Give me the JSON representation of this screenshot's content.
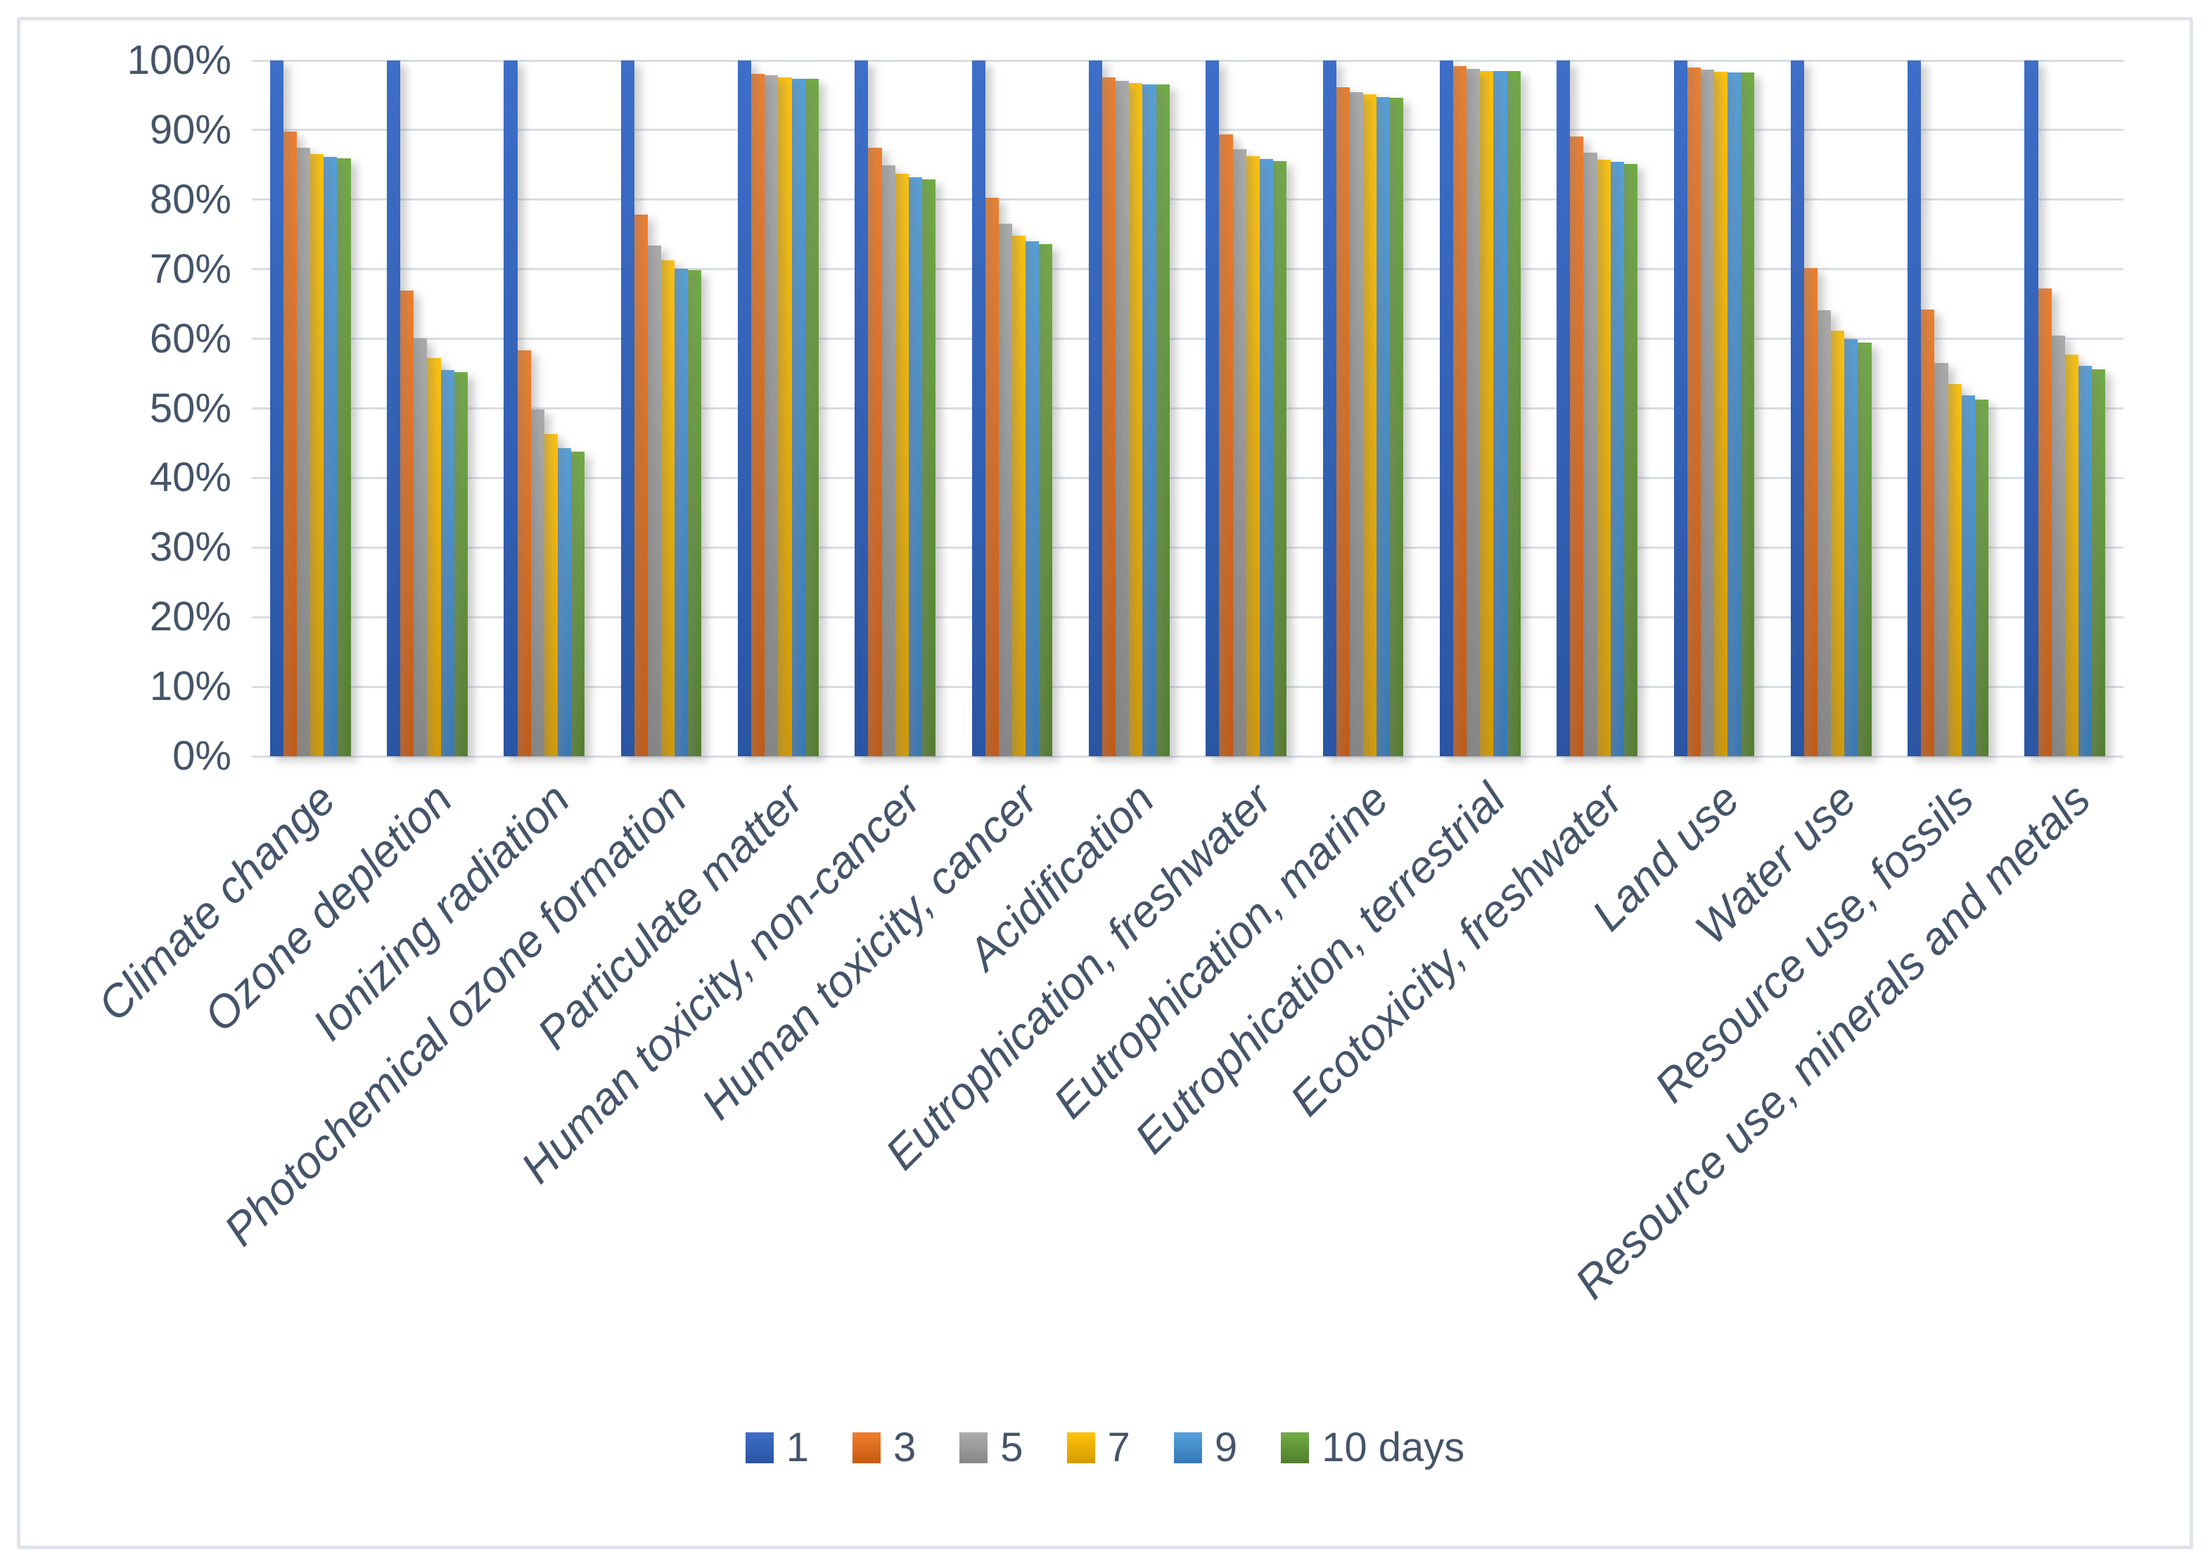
{
  "figure": {
    "kind": "clustered-bar-chart",
    "background": "#ffffff",
    "frame_border_color": "#dfe3ea"
  },
  "colors": {
    "grid": "#d8dde6",
    "text": "#44546a"
  },
  "y_axis": {
    "min": 0,
    "max": 100,
    "step": 10,
    "tick_labels": [
      "0%",
      "10%",
      "20%",
      "30%",
      "40%",
      "50%",
      "60%",
      "70%",
      "80%",
      "90%",
      "100%"
    ]
  },
  "legend": {
    "position": "bottom",
    "items": [
      "1",
      "3",
      "5",
      "7",
      "9",
      "10 days"
    ]
  },
  "chart_data": {
    "type": "bar",
    "title": "",
    "xlabel": "",
    "ylabel": "",
    "ylim": [
      0,
      100
    ],
    "grid": true,
    "legend_position": "bottom",
    "categories": [
      "Climate change",
      "Ozone depletion",
      "Ionizing radiation",
      "Photochemical ozone formation",
      "Particulate matter",
      "Human toxicity, non-cancer",
      "Human toxicity, cancer",
      "Acidification",
      "Eutrophication, freshwater",
      "Eutrophication, marine",
      "Eutrophication, terrestrial",
      "Ecotoxicity, freshwater",
      "Land use",
      "Water use",
      "Resource use, fossils",
      "Resource use, minerals and metals"
    ],
    "series": [
      {
        "name": "1",
        "color": "#3d6ec8",
        "color_dark": "#2a55a3",
        "values": [
          100,
          100,
          100,
          100,
          100,
          100,
          100,
          100,
          100,
          100,
          100,
          100,
          100,
          100,
          100,
          100
        ]
      },
      {
        "name": "3",
        "color": "#f07f2e",
        "color_dark": "#c65911",
        "values": [
          89.8,
          66.9,
          58.3,
          77.9,
          98.1,
          87.5,
          80.3,
          97.6,
          89.4,
          96.2,
          99.2,
          89.1,
          99.0,
          70.2,
          64.2,
          67.2
        ]
      },
      {
        "name": "5",
        "color": "#acacac",
        "color_dark": "#878787",
        "values": [
          87.5,
          60.1,
          49.9,
          73.4,
          97.9,
          84.9,
          76.5,
          97.1,
          87.3,
          95.5,
          98.8,
          86.8,
          98.7,
          64.1,
          56.5,
          60.5
        ]
      },
      {
        "name": "7",
        "color": "#ffc30b",
        "color_dark": "#d59b00",
        "values": [
          86.6,
          57.2,
          46.3,
          71.3,
          97.6,
          83.7,
          74.8,
          96.8,
          86.3,
          95.1,
          98.5,
          85.7,
          98.4,
          61.2,
          53.5,
          57.7
        ]
      },
      {
        "name": "9",
        "color": "#55a0dc",
        "color_dark": "#3679b8",
        "values": [
          86.1,
          55.5,
          44.3,
          70.1,
          97.4,
          83.2,
          74.0,
          96.6,
          85.8,
          94.7,
          98.5,
          85.4,
          98.3,
          60.0,
          51.9,
          56.1
        ]
      },
      {
        "name": "10 days",
        "color": "#70ac44",
        "color_dark": "#527e2e",
        "values": [
          85.9,
          55.2,
          43.8,
          69.9,
          97.4,
          82.9,
          73.6,
          96.6,
          85.5,
          94.6,
          98.5,
          85.1,
          98.3,
          59.5,
          51.3,
          55.6
        ]
      }
    ]
  }
}
